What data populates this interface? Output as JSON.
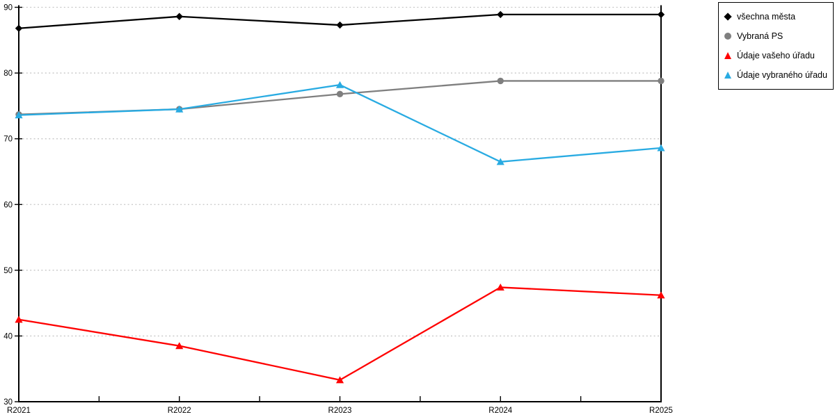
{
  "chart_data": {
    "type": "line",
    "categories": [
      "R2021",
      "R2022",
      "R2023",
      "R2024",
      "R2025"
    ],
    "series": [
      {
        "name": "všechna města",
        "color": "#000000",
        "marker": "diamond",
        "values": [
          86.8,
          88.6,
          87.3,
          88.9,
          88.9
        ]
      },
      {
        "name": "Vybraná PS",
        "color": "#7f7f7f",
        "marker": "circle",
        "values": [
          73.7,
          74.5,
          76.8,
          78.8,
          78.8
        ]
      },
      {
        "name": "Údaje vašeho úřadu",
        "color": "#ff0000",
        "marker": "triangle",
        "values": [
          42.5,
          38.5,
          33.3,
          47.4,
          46.2
        ]
      },
      {
        "name": "Údaje vybraného úřadu",
        "color": "#29abe2",
        "marker": "triangle",
        "values": [
          73.6,
          74.5,
          78.2,
          66.5,
          68.6
        ]
      }
    ],
    "title": "",
    "xlabel": "",
    "ylabel": "",
    "ylim": [
      30,
      90
    ],
    "yticks": [
      30,
      40,
      50,
      60,
      70,
      80,
      90
    ],
    "grid": "horizontal-dotted",
    "grid_color": "#c6c6c6",
    "axis_color": "#000000",
    "legend_position": "top-right"
  }
}
